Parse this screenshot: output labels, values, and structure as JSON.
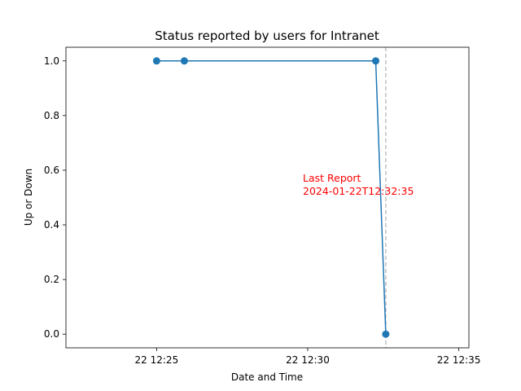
{
  "chart_data": {
    "type": "line",
    "title": "Status reported by users for Intranet",
    "xlabel": "Date and Time",
    "ylabel": "Up or Down",
    "x_ticks": [
      "22 12:25",
      "22 12:30",
      "22 12:35"
    ],
    "y_ticks": [
      "0.0",
      "0.2",
      "0.4",
      "0.6",
      "0.8",
      "1.0"
    ],
    "xlim": [
      "2024-01-22T12:22:00",
      "2024-01-22T12:35:20"
    ],
    "ylim": [
      -0.05,
      1.05
    ],
    "series": [
      {
        "x": [
          "2024-01-22T12:25:00",
          "2024-01-22T12:25:55",
          "2024-01-22T12:32:15",
          "2024-01-22T12:32:35"
        ],
        "values": [
          1,
          1,
          1,
          0
        ],
        "color": "#1f77b4"
      }
    ],
    "annotation": {
      "line1": "Last Report",
      "line2": "2024-01-22T12:32:35",
      "color": "#ff0000"
    },
    "vline": {
      "x": "2024-01-22T12:32:35",
      "style": "dashed",
      "color": "#bfbfbf"
    },
    "grid": false
  }
}
